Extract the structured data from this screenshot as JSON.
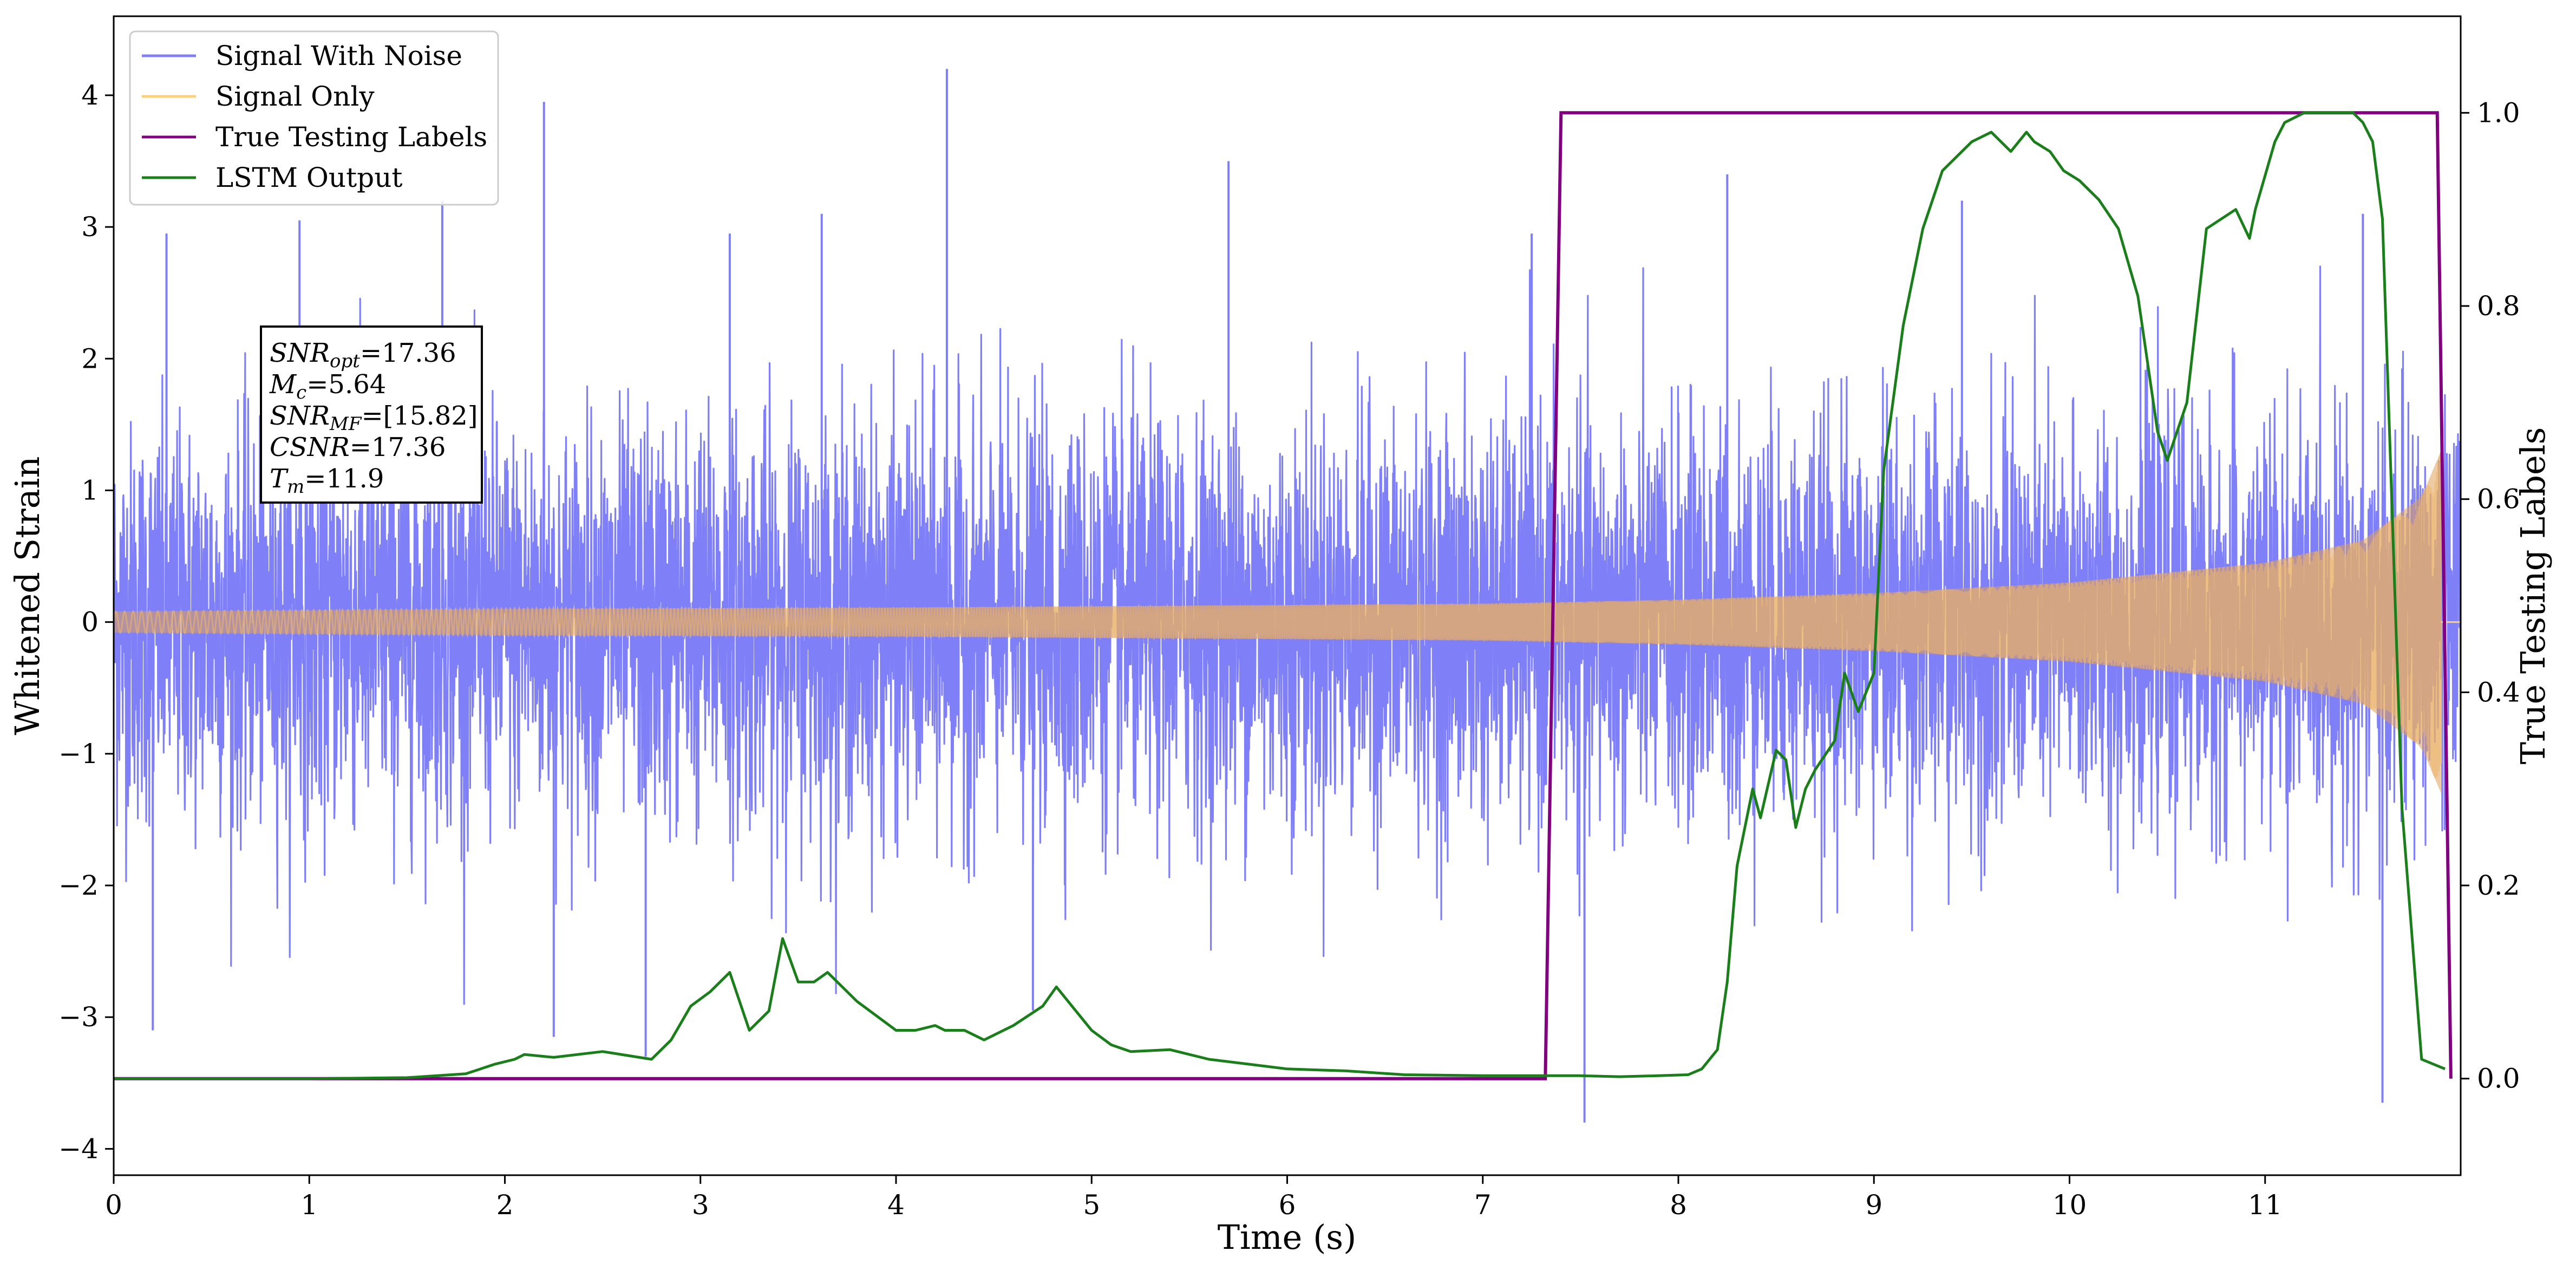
{
  "chart_data": {
    "type": "line",
    "xlabel": "Time (s)",
    "ylabel": "Whitened Strain",
    "y2label": "True Testing Labels",
    "xlim": [
      0,
      12.0
    ],
    "ylim": [
      -4.2,
      4.6
    ],
    "y2lim": [
      -0.1,
      1.1
    ],
    "xticks": [
      "0",
      "1",
      "2",
      "3",
      "4",
      "5",
      "6",
      "7",
      "8",
      "9",
      "10",
      "11"
    ],
    "yticks": [
      "4",
      "3",
      "2",
      "1",
      "0",
      "−1",
      "−2",
      "−3",
      "−4"
    ],
    "y2ticks": [
      "1.0",
      "0.8",
      "0.6",
      "0.4",
      "0.2",
      "0.0"
    ],
    "grid": false,
    "legend_position": "top-left",
    "legend": [
      {
        "label": "Signal With Noise",
        "color": "#7f7ff8"
      },
      {
        "label": "Signal Only",
        "color": "#ffd07a"
      },
      {
        "label": "True Testing Labels",
        "color": "#800080"
      },
      {
        "label": "LSTM Output",
        "color": "#1a7f1a"
      }
    ],
    "annotation": {
      "lines": [
        {
          "base": "SNR",
          "sub": "opt",
          "rest": "=17.36"
        },
        {
          "base": "M",
          "sub": "c",
          "rest": "=5.64"
        },
        {
          "base": "SNR",
          "sub": "MF",
          "rest": "=[15.82]"
        },
        {
          "base": "CSNR",
          "sub": "",
          "rest": "=17.36"
        },
        {
          "base": "T",
          "sub": "m",
          "rest": "=11.9"
        }
      ]
    },
    "series": [
      {
        "name": "Signal With Noise",
        "color": "#7f7ff8",
        "description": "dense white noise band approx within [-2, 2] with spikes up to about 4.2 and down to about -3.8",
        "noise_sigma": 0.75,
        "spikes": [
          {
            "x": 0.27,
            "y": 2.95
          },
          {
            "x": 0.2,
            "y": -3.1
          },
          {
            "x": 0.95,
            "y": 3.05
          },
          {
            "x": 1.68,
            "y": 3.2
          },
          {
            "x": 2.2,
            "y": 3.95
          },
          {
            "x": 2.25,
            "y": -3.15
          },
          {
            "x": 3.15,
            "y": 2.95
          },
          {
            "x": 3.62,
            "y": 3.1
          },
          {
            "x": 4.26,
            "y": 4.2
          },
          {
            "x": 5.7,
            "y": 3.5
          },
          {
            "x": 7.25,
            "y": 2.95
          },
          {
            "x": 7.52,
            "y": -3.8
          },
          {
            "x": 8.25,
            "y": 3.4
          },
          {
            "x": 9.45,
            "y": 3.2
          },
          {
            "x": 11.5,
            "y": 3.1
          },
          {
            "x": 11.6,
            "y": -3.65
          },
          {
            "x": 2.72,
            "y": -3.3
          },
          {
            "x": 4.7,
            "y": -2.95
          }
        ]
      },
      {
        "name": "Signal Only",
        "color": "#ffd07a",
        "description": "chirp with amplitude growing from about 0.08 at t=0 to about 1.3 at t=11.9, then zero",
        "amplitude_points": {
          "x": [
            0,
            2,
            4,
            6,
            7,
            8,
            9,
            10,
            11,
            11.5,
            11.8,
            11.9
          ],
          "y": [
            0.08,
            0.1,
            0.11,
            0.13,
            0.14,
            0.17,
            0.22,
            0.3,
            0.45,
            0.62,
            0.95,
            1.3
          ]
        },
        "end_time": 11.9
      },
      {
        "name": "True Testing Labels",
        "color": "#800080",
        "axis": "y2",
        "x": [
          0,
          7.32,
          7.4,
          11.88,
          11.95
        ],
        "y": [
          0,
          0,
          1,
          1,
          0
        ]
      },
      {
        "name": "LSTM Output",
        "color": "#1a7f1a",
        "axis": "y2",
        "x": [
          0,
          1.0,
          1.5,
          1.8,
          1.95,
          2.05,
          2.1,
          2.25,
          2.5,
          2.75,
          2.85,
          2.95,
          3.05,
          3.15,
          3.25,
          3.35,
          3.42,
          3.5,
          3.58,
          3.65,
          3.8,
          4.0,
          4.1,
          4.2,
          4.25,
          4.35,
          4.45,
          4.6,
          4.75,
          4.82,
          4.9,
          5.0,
          5.1,
          5.2,
          5.4,
          5.6,
          5.8,
          6.0,
          6.3,
          6.6,
          7.0,
          7.3,
          7.5,
          7.7,
          7.9,
          8.05,
          8.12,
          8.2,
          8.25,
          8.3,
          8.38,
          8.42,
          8.5,
          8.55,
          8.6,
          8.65,
          8.7,
          8.8,
          8.85,
          8.92,
          9.0,
          9.05,
          9.15,
          9.25,
          9.35,
          9.45,
          9.5,
          9.6,
          9.7,
          9.78,
          9.82,
          9.9,
          9.97,
          10.05,
          10.15,
          10.25,
          10.35,
          10.45,
          10.5,
          10.6,
          10.7,
          10.85,
          10.92,
          10.95,
          11.05,
          11.1,
          11.2,
          11.3,
          11.45,
          11.5,
          11.55,
          11.6,
          11.7,
          11.8,
          11.92
        ],
        "y": [
          0,
          0,
          0.001,
          0.005,
          0.015,
          0.02,
          0.025,
          0.022,
          0.028,
          0.02,
          0.04,
          0.075,
          0.09,
          0.11,
          0.05,
          0.07,
          0.145,
          0.1,
          0.1,
          0.11,
          0.08,
          0.05,
          0.05,
          0.055,
          0.05,
          0.05,
          0.04,
          0.055,
          0.075,
          0.095,
          0.075,
          0.05,
          0.035,
          0.028,
          0.03,
          0.02,
          0.015,
          0.01,
          0.008,
          0.004,
          0.003,
          0.003,
          0.003,
          0.002,
          0.003,
          0.004,
          0.01,
          0.03,
          0.1,
          0.22,
          0.3,
          0.27,
          0.34,
          0.33,
          0.26,
          0.3,
          0.32,
          0.35,
          0.42,
          0.38,
          0.42,
          0.63,
          0.78,
          0.88,
          0.94,
          0.96,
          0.97,
          0.98,
          0.96,
          0.98,
          0.97,
          0.96,
          0.94,
          0.93,
          0.91,
          0.88,
          0.81,
          0.67,
          0.64,
          0.7,
          0.88,
          0.9,
          0.87,
          0.9,
          0.97,
          0.99,
          1.0,
          1.0,
          1.0,
          0.99,
          0.97,
          0.89,
          0.28,
          0.02,
          0.01
        ]
      }
    ]
  }
}
